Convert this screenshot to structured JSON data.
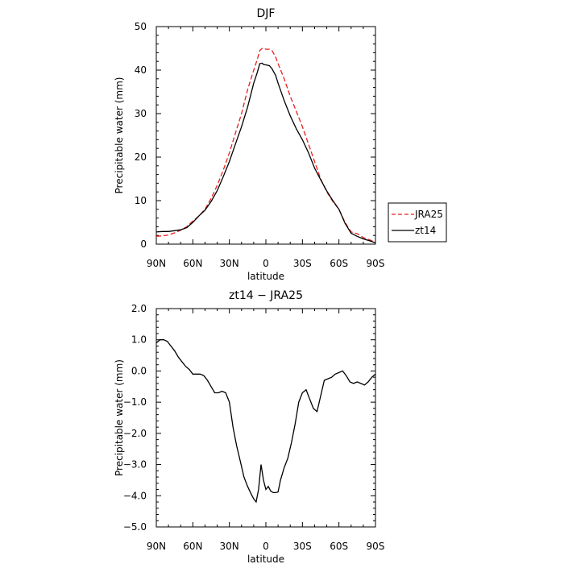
{
  "chart_data": [
    {
      "type": "line",
      "title": "DJF",
      "xlabel": "latitude",
      "ylabel": "Precipitable water (mm)",
      "xlim": [
        90,
        -90
      ],
      "ylim": [
        0,
        50
      ],
      "xticks": [
        90,
        60,
        30,
        0,
        -30,
        -60,
        -90
      ],
      "xtick_labels": [
        "90N",
        "60N",
        "30N",
        "0",
        "30S",
        "60S",
        "90S"
      ],
      "yticks": [
        0,
        10,
        20,
        30,
        40,
        50
      ],
      "ytick_labels": [
        "0",
        "10",
        "20",
        "30",
        "40",
        "50"
      ],
      "legend_position": "right",
      "grid": false,
      "series": [
        {
          "name": "JRA25",
          "color": "#e8201e",
          "dash": "dashed",
          "x": [
            90,
            85,
            80,
            75,
            70,
            65,
            60,
            55,
            50,
            45,
            40,
            35,
            30,
            25,
            20,
            15,
            10,
            7,
            5,
            3,
            2,
            0,
            -3,
            -5,
            -8,
            -10,
            -15,
            -20,
            -25,
            -30,
            -35,
            -40,
            -45,
            -50,
            -55,
            -60,
            -65,
            -70,
            -75,
            -80,
            -85,
            -90
          ],
          "y": [
            1.8,
            1.9,
            2.1,
            2.6,
            3.2,
            4.0,
            5.3,
            6.5,
            8.0,
            10.5,
            13.5,
            17.0,
            21.0,
            25.5,
            30.0,
            35.5,
            40.0,
            42.5,
            44.5,
            45.0,
            45.0,
            44.8,
            44.8,
            44.5,
            43.0,
            41.5,
            38.0,
            34.0,
            30.5,
            27.0,
            23.0,
            19.0,
            15.0,
            12.0,
            9.8,
            8.0,
            5.0,
            2.8,
            2.4,
            1.5,
            1.0,
            0.5
          ]
        },
        {
          "name": "zt14",
          "color": "#000000",
          "dash": "solid",
          "x": [
            90,
            85,
            80,
            75,
            70,
            65,
            60,
            55,
            50,
            45,
            40,
            35,
            30,
            25,
            20,
            15,
            10,
            7,
            5,
            3,
            2,
            0,
            -3,
            -5,
            -8,
            -10,
            -15,
            -20,
            -25,
            -30,
            -35,
            -40,
            -45,
            -50,
            -55,
            -60,
            -65,
            -70,
            -75,
            -80,
            -85,
            -90
          ],
          "y": [
            2.8,
            2.9,
            2.9,
            3.1,
            3.3,
            3.8,
            5.0,
            6.5,
            7.8,
            9.8,
            12.3,
            15.5,
            19.0,
            23.0,
            27.0,
            31.5,
            37.0,
            39.5,
            41.5,
            41.6,
            41.3,
            41.2,
            41.0,
            40.3,
            38.8,
            37.0,
            33.0,
            29.5,
            26.5,
            24.0,
            21.0,
            17.5,
            14.8,
            12.2,
            10.0,
            8.0,
            4.8,
            2.5,
            1.8,
            1.2,
            0.8,
            0.3
          ]
        }
      ]
    },
    {
      "type": "line",
      "title": "zt14 − JRA25",
      "xlabel": "latitude",
      "ylabel": "Precipitable water (mm)",
      "xlim": [
        90,
        -90
      ],
      "ylim": [
        -5.0,
        2.0
      ],
      "xticks": [
        90,
        60,
        30,
        0,
        -30,
        -60,
        -90
      ],
      "xtick_labels": [
        "90N",
        "60N",
        "30N",
        "0",
        "30S",
        "60S",
        "90S"
      ],
      "yticks": [
        2.0,
        1.0,
        0.0,
        -1.0,
        -2.0,
        -3.0,
        -4.0,
        -5.0
      ],
      "ytick_labels": [
        "2.0",
        "1.0",
        "0.0",
        "−1.0",
        "−2.0",
        "−3.0",
        "−4.0",
        "−5.0"
      ],
      "grid": false,
      "series": [
        {
          "color": "#000000",
          "dash": "solid",
          "x": [
            90,
            87,
            84,
            81,
            78,
            75,
            72,
            69,
            66,
            63,
            60,
            57,
            54,
            51,
            48,
            45,
            42,
            39,
            36,
            33,
            30,
            27,
            24,
            21,
            18,
            15,
            12,
            10,
            8,
            6,
            4,
            2,
            0,
            -2,
            -4,
            -6,
            -8,
            -10,
            -12,
            -15,
            -18,
            -21,
            -24,
            -27,
            -30,
            -33,
            -36,
            -39,
            -42,
            -45,
            -48,
            -51,
            -54,
            -57,
            -60,
            -63,
            -66,
            -69,
            -72,
            -75,
            -78,
            -81,
            -84,
            -87,
            -90
          ],
          "y": [
            0.9,
            1.0,
            1.0,
            0.95,
            0.8,
            0.65,
            0.45,
            0.3,
            0.15,
            0.05,
            -0.1,
            -0.1,
            -0.1,
            -0.15,
            -0.3,
            -0.5,
            -0.7,
            -0.7,
            -0.65,
            -0.7,
            -1.0,
            -1.8,
            -2.4,
            -2.9,
            -3.4,
            -3.7,
            -3.95,
            -4.1,
            -4.2,
            -3.8,
            -3.0,
            -3.5,
            -3.8,
            -3.7,
            -3.85,
            -3.9,
            -3.9,
            -3.88,
            -3.5,
            -3.1,
            -2.8,
            -2.3,
            -1.7,
            -1.0,
            -0.7,
            -0.6,
            -0.9,
            -1.2,
            -1.3,
            -0.8,
            -0.3,
            -0.25,
            -0.2,
            -0.1,
            -0.05,
            0.0,
            -0.15,
            -0.35,
            -0.4,
            -0.35,
            -0.4,
            -0.45,
            -0.35,
            -0.2,
            -0.1
          ]
        }
      ]
    }
  ]
}
